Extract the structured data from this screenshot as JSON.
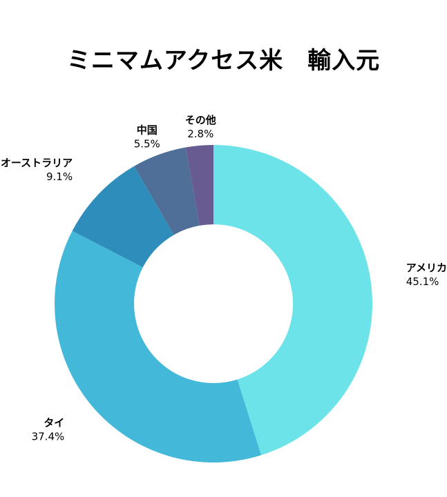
{
  "chart_data": {
    "type": "pie",
    "style": "donut",
    "title": "ミニマムアクセス米　輸入元",
    "categories": [
      "アメリカ",
      "タイ",
      "オーストラリア",
      "中国",
      "その他"
    ],
    "values": [
      45.1,
      37.4,
      9.1,
      5.5,
      2.8
    ],
    "value_labels": [
      "45.1%",
      "37.4%",
      "9.1%",
      "5.5%",
      "2.8%"
    ],
    "colors": [
      "#6BE3E8",
      "#44B8D8",
      "#2E8DBB",
      "#4F6F99",
      "#675B92"
    ],
    "legend": "none"
  }
}
